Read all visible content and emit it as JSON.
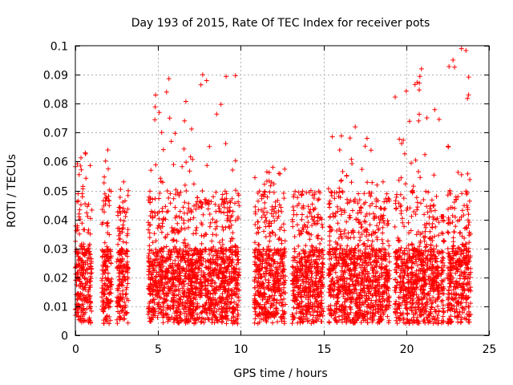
{
  "chart_data": {
    "type": "scatter",
    "title": "Day 193 of 2015, Rate Of TEC Index for receiver pots",
    "xlabel": "GPS time / hours",
    "ylabel": "ROTI / TECUs",
    "xlim": [
      0,
      25
    ],
    "ylim": [
      0,
      0.1
    ],
    "xticks": [
      0,
      5,
      10,
      15,
      20,
      25
    ],
    "xtick_labels": [
      "0",
      "5",
      "10",
      "15",
      "20",
      "25"
    ],
    "yticks": [
      0,
      0.01,
      0.02,
      0.03,
      0.04,
      0.05,
      0.06,
      0.07,
      0.08,
      0.09,
      0.1
    ],
    "ytick_labels": [
      "0",
      "0.01",
      "0.02",
      "0.03",
      "0.04",
      "0.05",
      "0.06",
      "0.07",
      "0.08",
      "0.09",
      "0.1"
    ],
    "grid": true,
    "marker": "+",
    "color": "#ff0000",
    "segments": [
      {
        "start": 0.0,
        "end": 1.0,
        "peak": 0.063
      },
      {
        "start": 1.6,
        "end": 2.2,
        "peak": 0.064
      },
      {
        "start": 2.5,
        "end": 3.2,
        "peak": 0.053
      },
      {
        "start": 4.4,
        "end": 9.9,
        "peak": 0.09
      },
      {
        "start": 10.8,
        "end": 12.7,
        "peak": 0.058
      },
      {
        "start": 13.1,
        "end": 15.0,
        "peak": 0.05
      },
      {
        "start": 15.3,
        "end": 18.0,
        "peak": 0.072
      },
      {
        "start": 18.0,
        "end": 19.0,
        "peak": 0.053
      },
      {
        "start": 19.3,
        "end": 22.0,
        "peak": 0.092
      },
      {
        "start": 22.1,
        "end": 22.3,
        "peak": 0.041
      },
      {
        "start": 22.5,
        "end": 23.9,
        "peak": 0.099
      }
    ]
  }
}
